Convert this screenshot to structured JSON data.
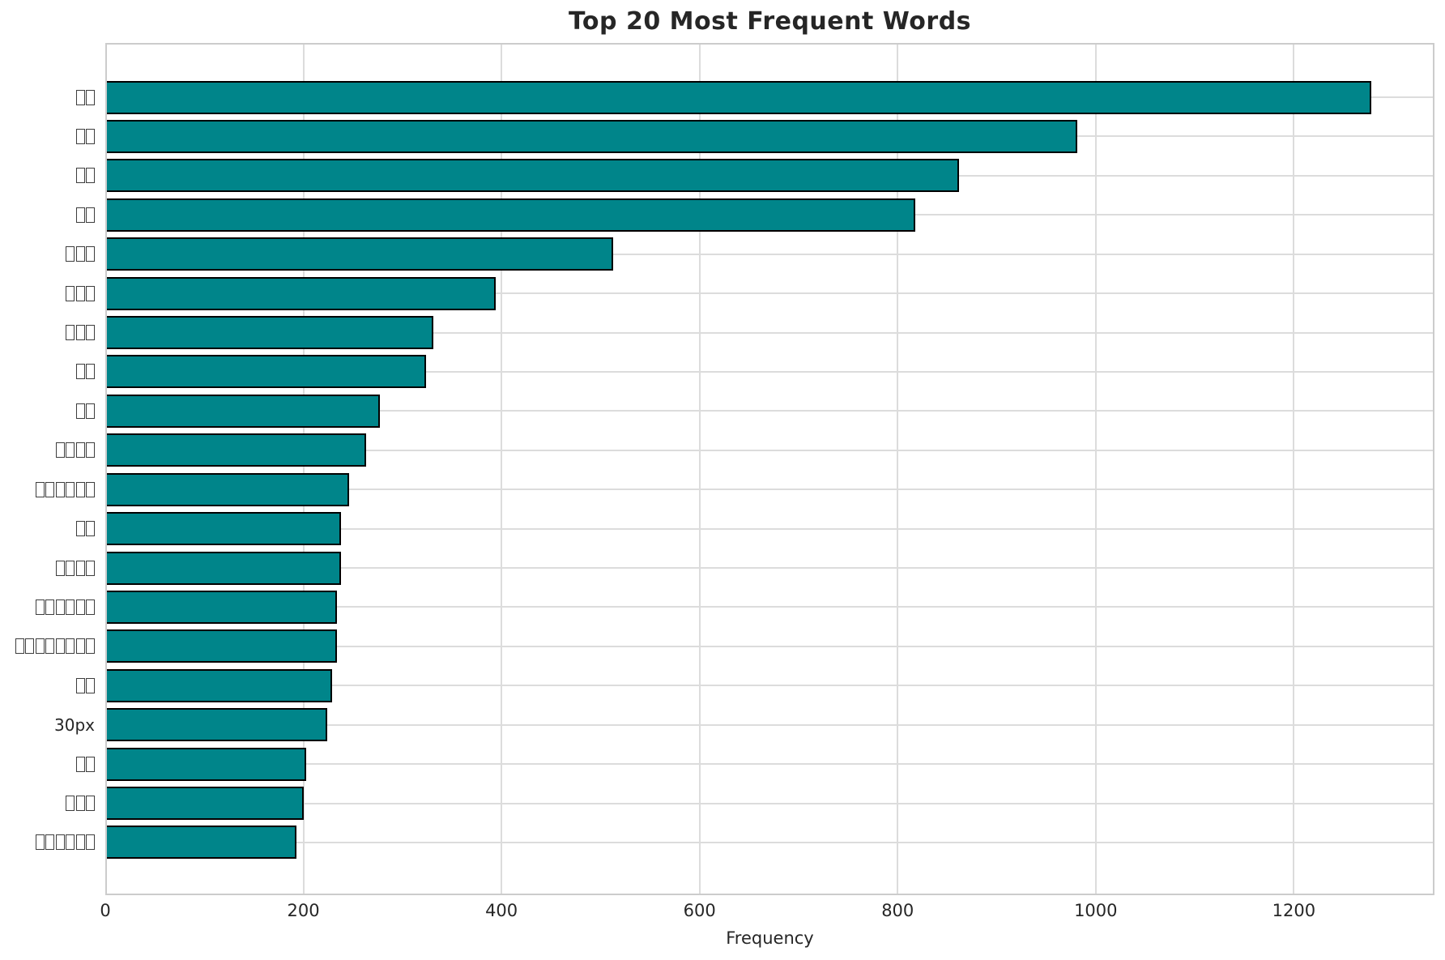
{
  "chart_data": {
    "type": "bar",
    "orientation": "horizontal",
    "title": "Top 20 Most Frequent Words",
    "xlabel": "Frequency",
    "ylabel": "",
    "categories": [
      "□□",
      "□□",
      "□□",
      "□□",
      "□□□",
      "□□□",
      "□□□",
      "□□",
      "□□",
      "□□□□",
      "□□□□□□",
      "□□",
      "□□□□",
      "□□□□□□",
      "□□□□□□□□",
      "□□",
      "30px",
      "□□",
      "□□□",
      "□□□□□□"
    ],
    "categories_note": "y labels are missing-glyph (tofu) boxes except '30px'",
    "values": [
      1278,
      981,
      862,
      818,
      513,
      394,
      331,
      324,
      277,
      263,
      246,
      238,
      238,
      234,
      234,
      229,
      224,
      203,
      200,
      193
    ],
    "xticks": [
      0,
      200,
      400,
      600,
      800,
      1000,
      1200
    ],
    "xlim": [
      0,
      1342
    ],
    "grid": true,
    "legend": false,
    "colors": {
      "bar_fill": "#00858a",
      "bar_edge": "#000000",
      "gridline": "#dcdcdc",
      "plot_border": "#cccccc",
      "text": "#262626"
    }
  }
}
